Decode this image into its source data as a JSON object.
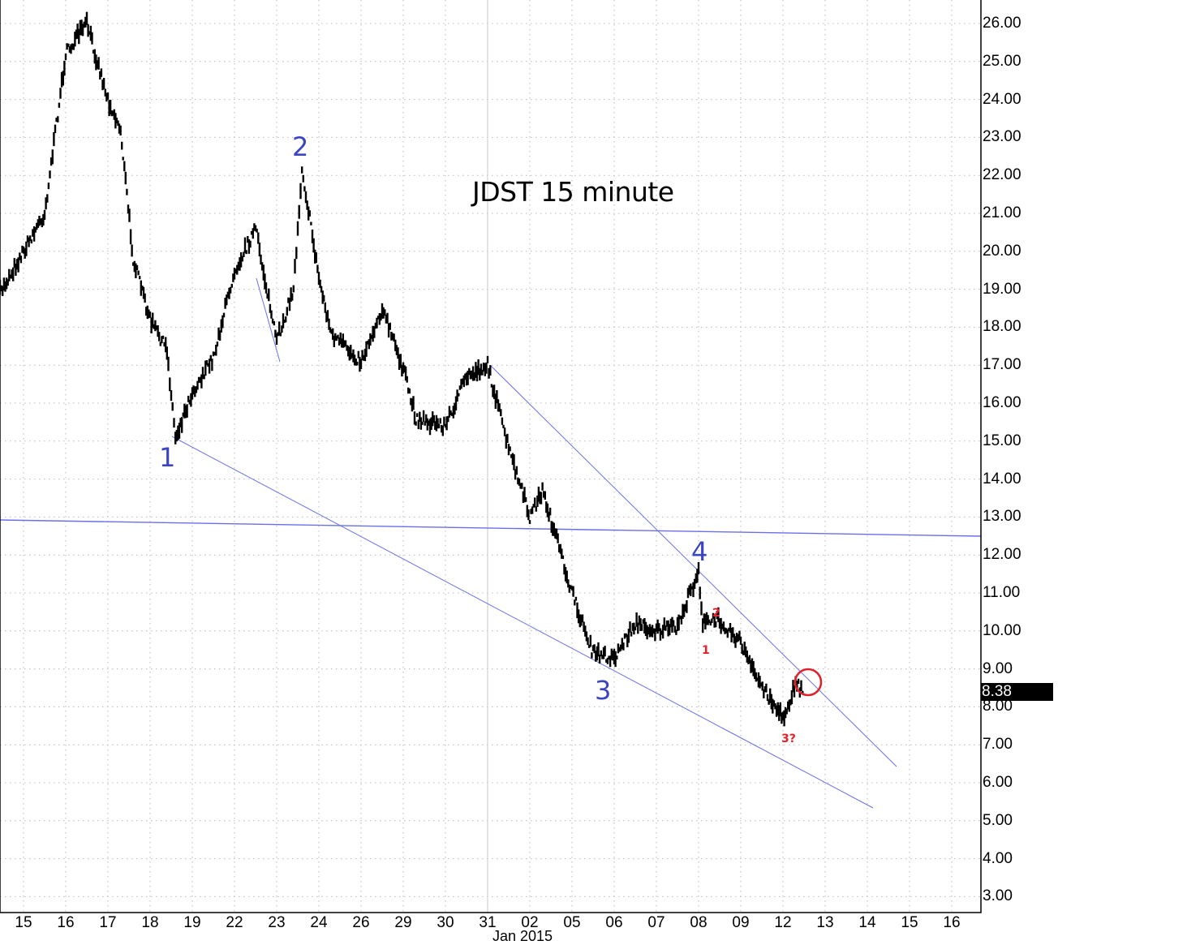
{
  "chart_data": {
    "type": "line",
    "title": "JDST 15 minute",
    "xlabel": "",
    "ylabel": "",
    "ylim": [
      3.0,
      26.0
    ],
    "grid": true,
    "yticks": [
      "26.00",
      "25.00",
      "24.00",
      "23.00",
      "22.00",
      "21.00",
      "20.00",
      "19.00",
      "18.00",
      "17.00",
      "16.00",
      "15.00",
      "14.00",
      "13.00",
      "12.00",
      "11.00",
      "10.00",
      "9.00",
      "8.00",
      "7.00",
      "6.00",
      "5.00",
      "4.00",
      "3.00"
    ],
    "xticks": [
      "15",
      "16",
      "17",
      "18",
      "19",
      "22",
      "23",
      "24",
      "26",
      "29",
      "30",
      "31",
      "02",
      "05",
      "06",
      "07",
      "08",
      "09",
      "12",
      "13",
      "14",
      "15",
      "16"
    ],
    "x_sub_label": "Jan 2015",
    "last_price": "8.38",
    "series": [
      {
        "name": "JDST price (approx.)",
        "x": [
          "15",
          "15.5",
          "16",
          "16.5",
          "17",
          "17.3",
          "17.6",
          "18",
          "18.4",
          "18.6",
          "19",
          "19.5",
          "22",
          "22.5",
          "23",
          "23.4",
          "23.6",
          "24",
          "24.3",
          "26",
          "26.5",
          "29",
          "29.3",
          "30",
          "30.5",
          "31",
          "31.5",
          "02",
          "02.3",
          "05",
          "05.5",
          "06",
          "06.5",
          "07",
          "07.5",
          "08",
          "08.1",
          "08.5",
          "09",
          "09.3",
          "12",
          "12.3",
          "12.5"
        ],
        "values": [
          18.9,
          21.0,
          25.2,
          26.0,
          24.0,
          23.2,
          19.8,
          18.2,
          17.4,
          15.1,
          16.3,
          17.2,
          19.5,
          20.6,
          17.6,
          19.0,
          22.2,
          19.3,
          17.8,
          17.1,
          18.5,
          16.9,
          15.6,
          15.4,
          16.7,
          17.0,
          14.8,
          13.0,
          13.7,
          11.0,
          9.4,
          9.3,
          10.2,
          10.0,
          10.1,
          11.6,
          10.2,
          10.3,
          9.7,
          8.9,
          7.7,
          8.6,
          8.38
        ]
      }
    ],
    "annotations": {
      "elliott_waves_primary": [
        {
          "label": "1",
          "x": "18.6",
          "price": 15.1
        },
        {
          "label": "2",
          "x": "23.6",
          "price": 22.2
        },
        {
          "label": "3",
          "x": "06",
          "price": 9.1
        },
        {
          "label": "4",
          "x": "08",
          "price": 11.6
        }
      ],
      "elliott_waves_minor": [
        {
          "label": "1",
          "x": "08.1",
          "price": 9.6
        },
        {
          "label": "2",
          "x": "08.4",
          "price": 10.4
        },
        {
          "label": "3?",
          "x": "12",
          "price": 7.5
        }
      ],
      "trendlines": [
        {
          "name": "lower channel",
          "from": {
            "x": "18.6",
            "price": 15.1
          },
          "to": {
            "x": "14.2",
            "price": 5.3
          }
        },
        {
          "name": "upper channel",
          "from": {
            "x": "31",
            "price": 17.0
          },
          "to": {
            "x": "14.7",
            "price": 6.4
          }
        },
        {
          "name": "horizontal",
          "from": {
            "x": "start",
            "price": 12.9
          },
          "to": {
            "x": "end",
            "price": 12.5
          }
        }
      ],
      "highlight_circle": {
        "x": "12.6",
        "price": 8.7,
        "color": "#e8202a"
      }
    }
  },
  "labels": {
    "title": "JDST 15 minute",
    "wave1": "1",
    "wave2": "2",
    "wave3": "3",
    "wave4": "4",
    "minor1": "1",
    "minor2": "2",
    "minor3": "3?",
    "last_price": "8.38",
    "x_sub": "Jan 2015"
  },
  "colors": {
    "price": "#000000",
    "trendline": "#6b70e8",
    "wave_label": "#3b45c4",
    "minor_label": "#e8202a",
    "grid": "#b8b8b8"
  }
}
